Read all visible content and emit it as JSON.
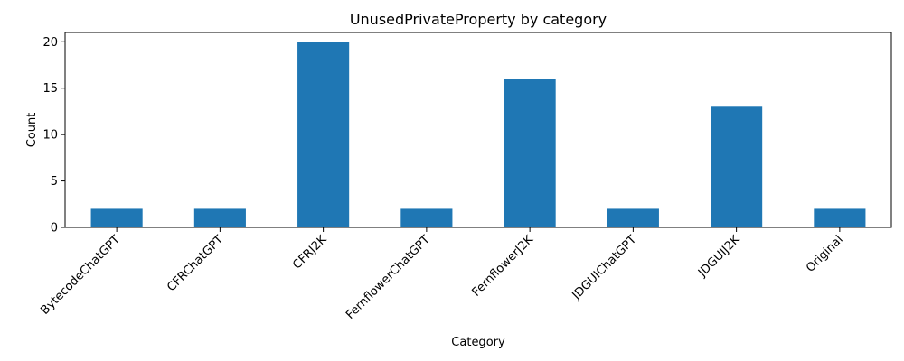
{
  "chart_data": {
    "type": "bar",
    "title": "UnusedPrivateProperty by category",
    "xlabel": "Category",
    "ylabel": "Count",
    "categories": [
      "BytecodeChatGPT",
      "CFRChatGPT",
      "CFRJ2K",
      "FernflowerChatGPT",
      "FernflowerJ2K",
      "JDGUIChatGPT",
      "JDGUIJ2K",
      "Original"
    ],
    "values": [
      2,
      2,
      20,
      2,
      16,
      2,
      13,
      2
    ],
    "ylim": [
      0,
      21
    ],
    "yticks": [
      0,
      5,
      10,
      15,
      20
    ],
    "grid": false,
    "color": "#1f77b4"
  }
}
